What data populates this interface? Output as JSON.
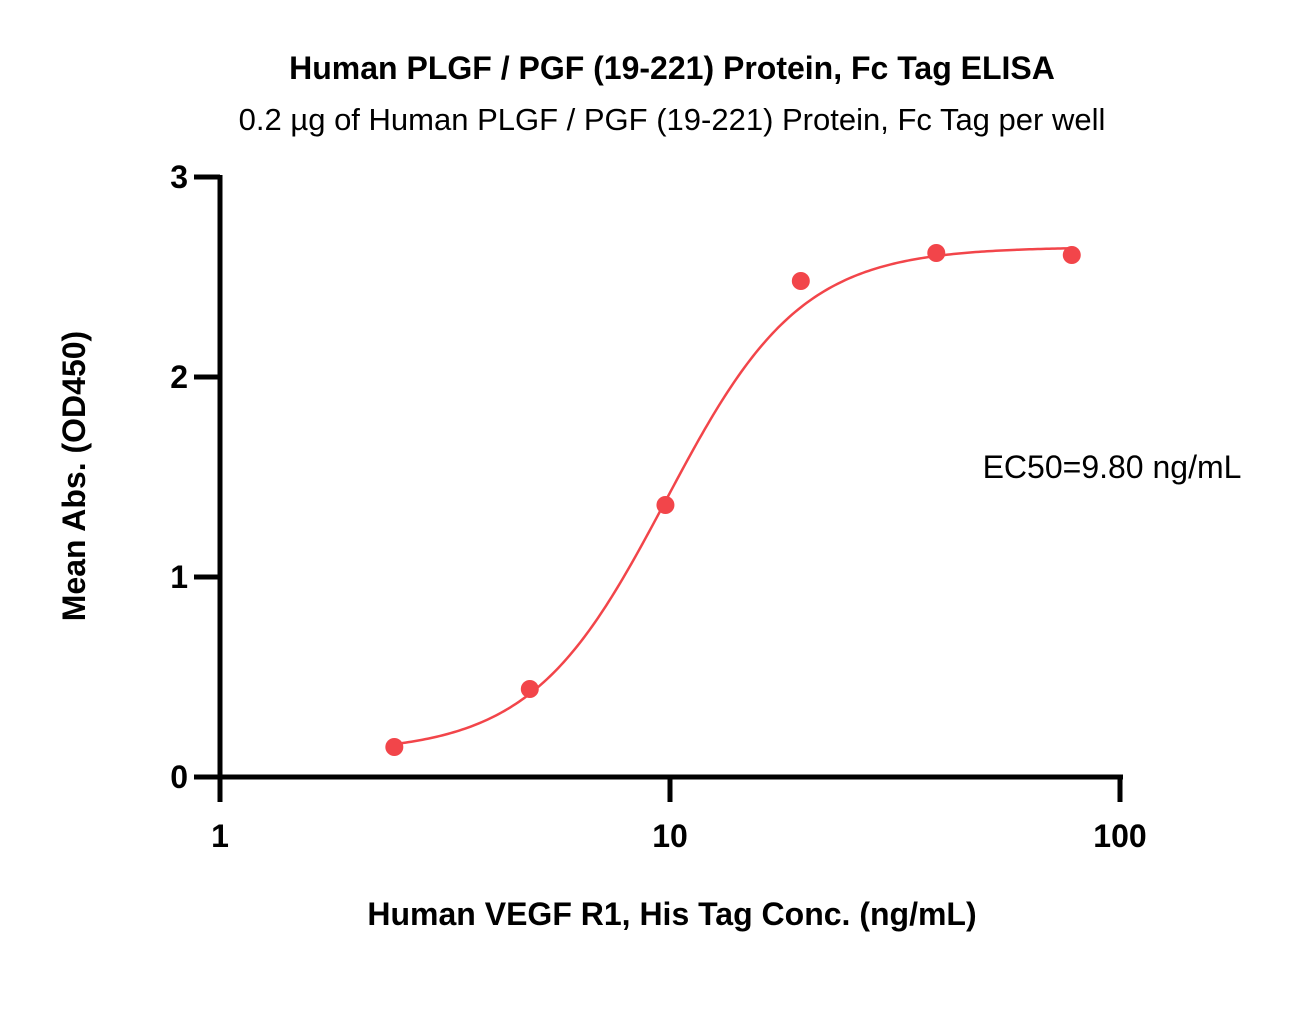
{
  "chart_data": {
    "type": "scatter",
    "title": "Human PLGF / PGF (19-221)  Protein, Fc Tag ELISA",
    "subtitle": "0.2 µg of Human PLGF / PGF (19-221)  Protein, Fc Tag per well",
    "xlabel": "Human VEGF R1, His Tag Conc. (ng/mL)",
    "ylabel": "Mean Abs. (OD450)",
    "x_scale": "log",
    "xlim": [
      1,
      100
    ],
    "ylim": [
      0,
      3
    ],
    "x_ticks": [
      1,
      10,
      100
    ],
    "x_tick_labels": [
      "1",
      "10",
      "100"
    ],
    "y_ticks": [
      0,
      1,
      2,
      3
    ],
    "y_tick_labels": [
      "0",
      "1",
      "2",
      "3"
    ],
    "grid": false,
    "series": [
      {
        "points": [
          {
            "x": 2.44,
            "y": 0.15
          },
          {
            "x": 4.88,
            "y": 0.44
          },
          {
            "x": 9.77,
            "y": 1.36
          },
          {
            "x": 19.53,
            "y": 2.48
          },
          {
            "x": 39.06,
            "y": 2.62
          },
          {
            "x": 78.13,
            "y": 2.61
          }
        ],
        "fit": {
          "type": "4PL",
          "bottom": 0.12,
          "top": 2.65,
          "ec50": 9.8,
          "hill": 2.9
        }
      }
    ],
    "color": "#f2454a",
    "annotation": "EC50=9.80 ng/mL"
  }
}
